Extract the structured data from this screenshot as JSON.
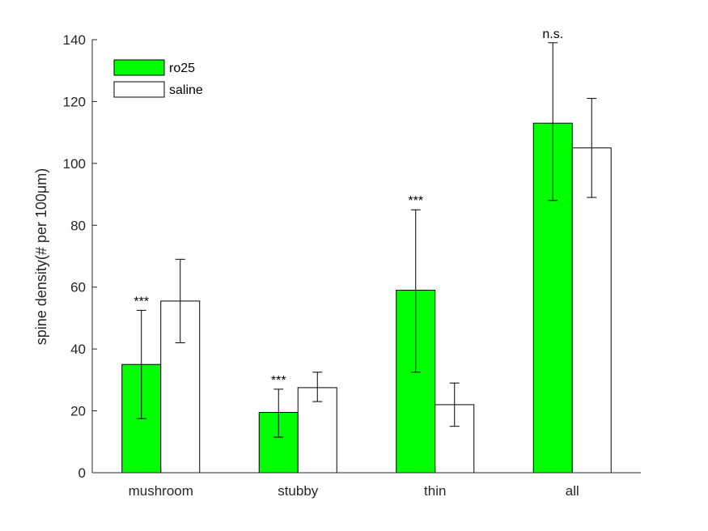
{
  "chart_data": {
    "type": "bar",
    "ylabel": "spine density(# per 100μm)",
    "ylim": [
      0,
      140
    ],
    "yticks": [
      0,
      20,
      40,
      60,
      80,
      100,
      120,
      140
    ],
    "categories": [
      "mushroom",
      "stubby",
      "thin",
      "all"
    ],
    "series": [
      {
        "name": "ro25",
        "color": "#00ff00",
        "values": [
          35,
          19.5,
          59,
          113
        ],
        "err_low": [
          17.5,
          11.5,
          32.5,
          88
        ],
        "err_high": [
          52.5,
          27,
          85,
          139
        ]
      },
      {
        "name": "saline",
        "color": "#ffffff",
        "values": [
          55.5,
          27.5,
          22,
          105
        ],
        "err_low": [
          42,
          23,
          15,
          89
        ],
        "err_high": [
          69,
          32.5,
          29,
          121
        ]
      }
    ],
    "annotations": [
      {
        "category": "mushroom",
        "text": "***"
      },
      {
        "category": "stubby",
        "text": "***"
      },
      {
        "category": "thin",
        "text": "***"
      },
      {
        "category": "all",
        "text": "n.s."
      }
    ],
    "legend": "top-left",
    "grid": false
  }
}
